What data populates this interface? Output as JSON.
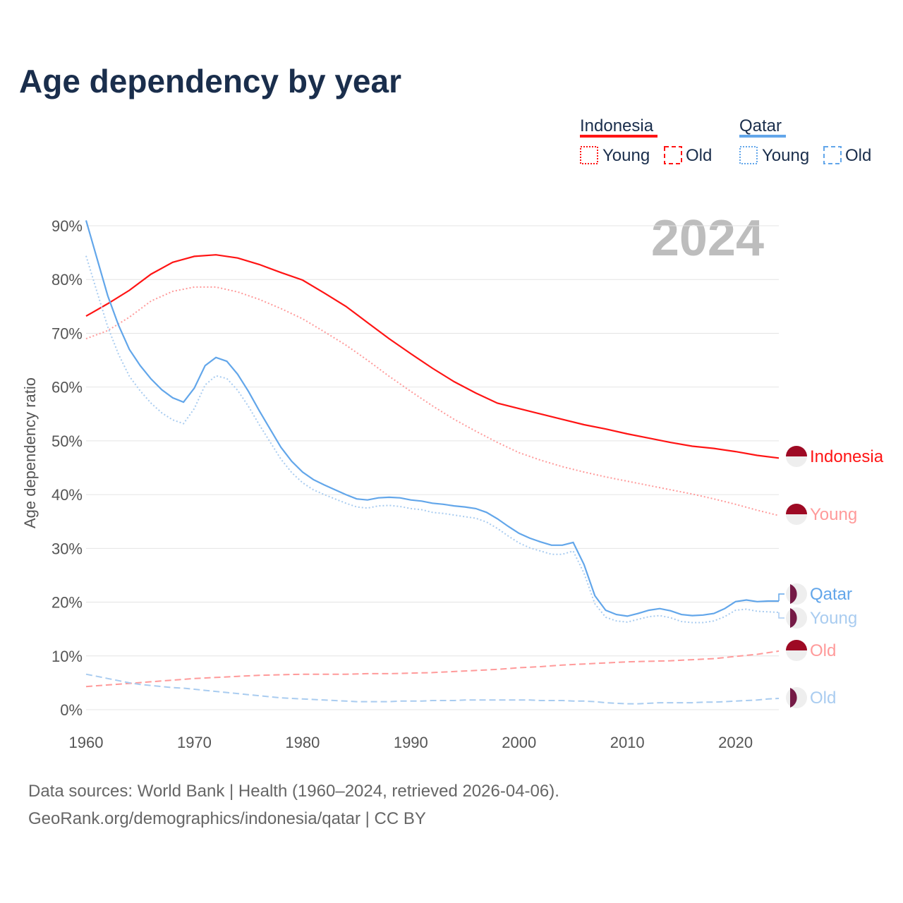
{
  "title": "Age dependency by year",
  "year_watermark": "2024",
  "legend": {
    "groups": [
      {
        "name": "Indonesia",
        "color": "#ff1414",
        "items": [
          "Young",
          "Old"
        ]
      },
      {
        "name": "Qatar",
        "color": "#62a6ea",
        "items": [
          "Young",
          "Old"
        ]
      }
    ]
  },
  "footer": {
    "line1": "Data sources: World Bank | Health (1960–2024, retrieved 2026-04-06).",
    "line2": "GeoRank.org/demographics/indonesia/qatar | CC BY"
  },
  "flag_colors": {
    "indonesia_top": "#9e0a24",
    "indonesia_bottom": "#eeeeee",
    "qatar": "#751a46"
  },
  "chart_data": {
    "type": "line",
    "title": "Age dependency by year",
    "xlabel": "",
    "ylabel": "Age dependency ratio",
    "xlim": [
      1960,
      2024
    ],
    "ylim": [
      0,
      90
    ],
    "x_ticks": [
      "1960",
      "1970",
      "1980",
      "1990",
      "2000",
      "2010",
      "2020"
    ],
    "y_ticks": [
      "0%",
      "10%",
      "20%",
      "30%",
      "40%",
      "50%",
      "60%",
      "70%",
      "80%",
      "90%"
    ],
    "grid": true,
    "legend_position": "top-right",
    "series": [
      {
        "name": "Indonesia",
        "label": "Indonesia",
        "style": "solid",
        "color": "#ff1414",
        "x_start": 1960,
        "x_step": 2,
        "values": [
          73.2,
          75.5,
          78,
          81,
          83.2,
          84.3,
          84.6,
          84.0,
          82.8,
          81.3,
          79.9,
          77.5,
          75.0,
          72.0,
          69.0,
          66.2,
          63.5,
          61.0,
          58.9,
          57.0,
          56.0,
          55,
          54,
          53,
          52.2,
          51.3,
          50.5,
          49.7,
          49.0,
          48.6,
          48.0,
          47.3,
          46.8
        ]
      },
      {
        "name": "Indonesia Young",
        "label": "Young",
        "style": "dotted",
        "color": "#ff9a9a",
        "x_start": 1960,
        "x_step": 2,
        "values": [
          69,
          70.5,
          73,
          76,
          77.8,
          78.6,
          78.6,
          77.7,
          76.3,
          74.6,
          72.7,
          70.3,
          67.8,
          65,
          62,
          59.2,
          56.5,
          54,
          51.8,
          49.7,
          47.8,
          46.4,
          45.2,
          44.2,
          43.3,
          42.5,
          41.7,
          40.9,
          40.1,
          39.2,
          38.2,
          37.1,
          36.1
        ]
      },
      {
        "name": "Indonesia Old",
        "label": "Old",
        "style": "dashed",
        "color": "#ff9a9a",
        "x_start": 1960,
        "x_step": 2,
        "values": [
          4.3,
          4.6,
          4.9,
          5.2,
          5.5,
          5.8,
          6.0,
          6.2,
          6.4,
          6.5,
          6.6,
          6.6,
          6.6,
          6.7,
          6.7,
          6.8,
          6.9,
          7.1,
          7.3,
          7.5,
          7.8,
          8.0,
          8.3,
          8.5,
          8.7,
          8.9,
          9.0,
          9.1,
          9.3,
          9.5,
          9.9,
          10.3,
          10.9
        ]
      },
      {
        "name": "Qatar",
        "label": "Qatar",
        "style": "solid",
        "color": "#62a6ea",
        "x_start": 1960,
        "x_step": 1,
        "values": [
          91.0,
          84.0,
          77.0,
          71.5,
          67.0,
          64.0,
          61.5,
          59.5,
          58.0,
          57.2,
          59.8,
          64.0,
          65.5,
          64.8,
          62.4,
          59.2,
          55.6,
          52.2,
          48.8,
          46.2,
          44.2,
          42.8,
          41.8,
          40.9,
          40.0,
          39.2,
          39.0,
          39.4,
          39.5,
          39.4,
          39.0,
          38.8,
          38.4,
          38.2,
          37.9,
          37.7,
          37.4,
          36.7,
          35.5,
          34.1,
          32.8,
          31.9,
          31.2,
          30.6,
          30.6,
          31.1,
          27.0,
          21.2,
          18.5,
          17.7,
          17.4,
          17.9,
          18.5,
          18.8,
          18.4,
          17.7,
          17.5,
          17.6,
          17.9,
          18.8,
          20.1,
          20.4,
          20.1,
          20.2,
          20.2
        ]
      },
      {
        "name": "Qatar Young",
        "label": "Young",
        "style": "dotted",
        "color": "#a9ccf0",
        "x_start": 1960,
        "x_step": 1,
        "values": [
          84.4,
          77.8,
          71.2,
          66.1,
          62.0,
          59.3,
          57.0,
          55.2,
          53.9,
          53.2,
          56.0,
          60.4,
          62.1,
          61.6,
          59.4,
          56.4,
          53.0,
          49.8,
          46.6,
          44.1,
          42.2,
          40.9,
          40.0,
          39.2,
          38.4,
          37.7,
          37.5,
          37.9,
          38.0,
          37.8,
          37.4,
          37.2,
          36.7,
          36.5,
          36.2,
          35.9,
          35.6,
          34.9,
          33.7,
          32.3,
          31.0,
          30.1,
          29.5,
          28.9,
          28.9,
          29.5,
          25.4,
          19.7,
          17.2,
          16.5,
          16.3,
          16.8,
          17.3,
          17.5,
          17.1,
          16.4,
          16.2,
          16.2,
          16.5,
          17.3,
          18.5,
          18.7,
          18.3,
          18.2,
          18.1
        ]
      },
      {
        "name": "Qatar Old",
        "label": "Old",
        "style": "dashed",
        "color": "#a9ccf0",
        "x_start": 1960,
        "x_step": 1,
        "values": [
          6.6,
          6.2,
          5.8,
          5.4,
          5.0,
          4.7,
          4.5,
          4.3,
          4.1,
          4.0,
          3.8,
          3.6,
          3.4,
          3.2,
          3.0,
          2.8,
          2.6,
          2.4,
          2.2,
          2.1,
          2.0,
          1.9,
          1.8,
          1.7,
          1.6,
          1.5,
          1.5,
          1.5,
          1.5,
          1.6,
          1.6,
          1.6,
          1.7,
          1.7,
          1.7,
          1.8,
          1.8,
          1.8,
          1.8,
          1.8,
          1.8,
          1.8,
          1.7,
          1.7,
          1.7,
          1.6,
          1.6,
          1.5,
          1.3,
          1.2,
          1.1,
          1.1,
          1.2,
          1.3,
          1.3,
          1.3,
          1.3,
          1.4,
          1.4,
          1.5,
          1.6,
          1.7,
          1.8,
          2.0,
          2.1
        ]
      }
    ]
  }
}
